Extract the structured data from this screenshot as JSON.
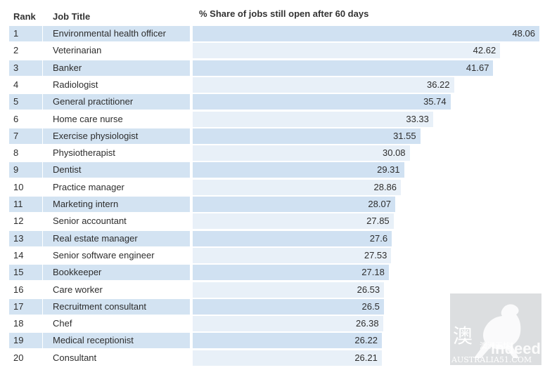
{
  "header": {
    "rank_label": "Rank",
    "title_label": "Job Title",
    "share_label": "% Share of jobs still open after 60 days"
  },
  "colors": {
    "row_shade_dark": "#d3e3f2",
    "row_shade_light": "#ebf2f9",
    "bar_dark": "#d0e1f2",
    "bar_light": "#e8f0f8"
  },
  "chart_data": {
    "type": "bar",
    "orientation": "horizontal",
    "title": "",
    "xlabel": "% Share of jobs still open after 60 days",
    "ylabel": "",
    "xlim": [
      0,
      48.06
    ],
    "grid": false,
    "categories": [
      "Environmental health officer",
      "Veterinarian",
      "Banker",
      "Radiologist",
      "General practitioner",
      "Home care nurse",
      "Exercise physiologist",
      "Physiotherapist",
      "Dentist",
      "Practice manager",
      "Marketing intern",
      "Senior accountant",
      "Real estate manager",
      "Senior software engineer",
      "Bookkeeper",
      "Care worker",
      "Recruitment consultant",
      "Chef",
      "Medical receptionist",
      "Consultant"
    ],
    "ranks": [
      "1",
      "2",
      "3",
      "4",
      "5",
      "6",
      "7",
      "8",
      "9",
      "10",
      "11",
      "12",
      "13",
      "14",
      "15",
      "16",
      "17",
      "18",
      "19",
      "20"
    ],
    "values": [
      48.06,
      42.62,
      41.67,
      36.22,
      35.74,
      33.33,
      31.55,
      30.08,
      29.31,
      28.86,
      28.07,
      27.85,
      27.6,
      27.53,
      27.18,
      26.53,
      26.5,
      26.38,
      26.22,
      26.21
    ],
    "value_labels": [
      "48.06",
      "42.62",
      "41.67",
      "36.22",
      "35.74",
      "33.33",
      "31.55",
      "30.08",
      "29.31",
      "28.86",
      "28.07",
      "27.85",
      "27.6",
      "27.53",
      "27.18",
      "26.53",
      "26.5",
      "26.38",
      "26.22",
      "26.21"
    ]
  },
  "watermark": {
    "logo_text": "indeed",
    "site_text": "AUSTRALIA51.COM",
    "cjk_text": "澳洲无忧"
  }
}
